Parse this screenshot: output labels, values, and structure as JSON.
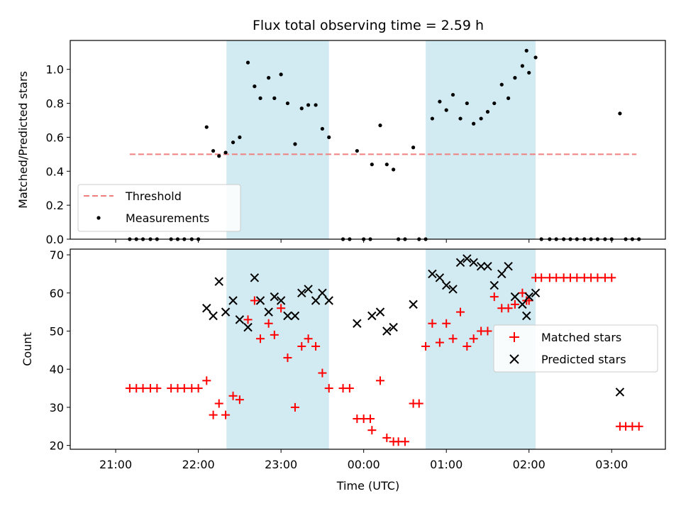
{
  "chart_data": {
    "type": "scatter",
    "title": "Flux total observing time = 2.59 h",
    "xlabel": "Time (UTC)",
    "x_ticks": [
      "21:00",
      "22:00",
      "23:00",
      "00:00",
      "01:00",
      "02:00",
      "03:00"
    ],
    "x_tick_hours": [
      21,
      22,
      23,
      24,
      25,
      26,
      27
    ],
    "xlim_hours": [
      20.45,
      27.65
    ],
    "shaded_intervals": [
      {
        "start": "22:20",
        "end": "23:35",
        "start_h": 22.34,
        "end_h": 23.58
      },
      {
        "start": "00:45",
        "end": "02:05",
        "start_h": 24.75,
        "end_h": 26.08
      }
    ],
    "shade_color": "#add8e6",
    "panels": [
      {
        "name": "ratio",
        "ylabel": "Matched/Predicted stars",
        "ylim": [
          0.0,
          1.17
        ],
        "y_ticks": [
          "0.0",
          "0.2",
          "0.4",
          "0.6",
          "0.8",
          "1.0"
        ],
        "y_tick_values": [
          0.0,
          0.2,
          0.4,
          0.6,
          0.8,
          1.0
        ],
        "legend_position": "lower-left",
        "threshold": {
          "name": "Threshold",
          "value": 0.5,
          "x_start_h": 21.17,
          "x_end_h": 27.3,
          "color": "#f08080",
          "style": "dashed"
        },
        "series": [
          {
            "name": "Measurements",
            "marker": "dot",
            "color": "#000000",
            "points": [
              [
                21.17,
                0
              ],
              [
                21.25,
                0
              ],
              [
                21.33,
                0
              ],
              [
                21.42,
                0
              ],
              [
                21.5,
                0
              ],
              [
                21.67,
                0
              ],
              [
                21.75,
                0
              ],
              [
                21.83,
                0
              ],
              [
                21.92,
                0
              ],
              [
                22.0,
                0
              ],
              [
                22.1,
                0.66
              ],
              [
                22.18,
                0.52
              ],
              [
                22.25,
                0.49
              ],
              [
                22.33,
                0.51
              ],
              [
                22.42,
                0.57
              ],
              [
                22.5,
                0.6
              ],
              [
                22.6,
                1.04
              ],
              [
                22.68,
                0.9
              ],
              [
                22.75,
                0.83
              ],
              [
                22.85,
                0.95
              ],
              [
                22.92,
                0.83
              ],
              [
                23.0,
                0.97
              ],
              [
                23.08,
                0.8
              ],
              [
                23.17,
                0.56
              ],
              [
                23.25,
                0.77
              ],
              [
                23.33,
                0.79
              ],
              [
                23.42,
                0.79
              ],
              [
                23.5,
                0.65
              ],
              [
                23.58,
                0.6
              ],
              [
                23.75,
                0
              ],
              [
                23.83,
                0
              ],
              [
                23.92,
                0.52
              ],
              [
                24.0,
                0
              ],
              [
                24.08,
                0
              ],
              [
                24.1,
                0.44
              ],
              [
                24.2,
                0.67
              ],
              [
                24.28,
                0.44
              ],
              [
                24.36,
                0.41
              ],
              [
                24.42,
                0
              ],
              [
                24.5,
                0
              ],
              [
                24.6,
                0.54
              ],
              [
                24.67,
                0
              ],
              [
                24.75,
                0
              ],
              [
                24.83,
                0.71
              ],
              [
                24.92,
                0.81
              ],
              [
                25.0,
                0.76
              ],
              [
                25.08,
                0.85
              ],
              [
                25.17,
                0.71
              ],
              [
                25.25,
                0.8
              ],
              [
                25.33,
                0.68
              ],
              [
                25.42,
                0.71
              ],
              [
                25.5,
                0.75
              ],
              [
                25.58,
                0.8
              ],
              [
                25.67,
                0.91
              ],
              [
                25.75,
                0.83
              ],
              [
                25.83,
                0.95
              ],
              [
                25.92,
                1.02
              ],
              [
                25.97,
                1.11
              ],
              [
                26.0,
                0.98
              ],
              [
                26.08,
                1.07
              ],
              [
                26.15,
                0
              ],
              [
                26.25,
                0
              ],
              [
                26.33,
                0
              ],
              [
                26.42,
                0
              ],
              [
                26.5,
                0
              ],
              [
                26.58,
                0
              ],
              [
                26.67,
                0
              ],
              [
                26.75,
                0
              ],
              [
                26.83,
                0
              ],
              [
                26.92,
                0
              ],
              [
                27.0,
                0
              ],
              [
                27.1,
                0.74
              ],
              [
                27.17,
                0
              ],
              [
                27.25,
                0
              ],
              [
                27.33,
                0
              ]
            ]
          }
        ]
      },
      {
        "name": "counts",
        "ylabel": "Count",
        "ylim": [
          19,
          71.5
        ],
        "y_ticks": [
          "20",
          "30",
          "40",
          "50",
          "60",
          "70"
        ],
        "y_tick_values": [
          20,
          30,
          40,
          50,
          60,
          70
        ],
        "legend_position": "center-right",
        "series": [
          {
            "name": "Matched stars",
            "marker": "plus",
            "color": "#ff0000",
            "points": [
              [
                21.17,
                35
              ],
              [
                21.25,
                35
              ],
              [
                21.33,
                35
              ],
              [
                21.42,
                35
              ],
              [
                21.5,
                35
              ],
              [
                21.67,
                35
              ],
              [
                21.75,
                35
              ],
              [
                21.83,
                35
              ],
              [
                21.92,
                35
              ],
              [
                22.0,
                35
              ],
              [
                22.1,
                37
              ],
              [
                22.18,
                28
              ],
              [
                22.25,
                31
              ],
              [
                22.33,
                28
              ],
              [
                22.42,
                33
              ],
              [
                22.5,
                32
              ],
              [
                22.6,
                53
              ],
              [
                22.68,
                58
              ],
              [
                22.75,
                48
              ],
              [
                22.85,
                52
              ],
              [
                22.92,
                49
              ],
              [
                23.0,
                56
              ],
              [
                23.08,
                43
              ],
              [
                23.17,
                30
              ],
              [
                23.25,
                46
              ],
              [
                23.33,
                48
              ],
              [
                23.42,
                46
              ],
              [
                23.5,
                39
              ],
              [
                23.58,
                35
              ],
              [
                23.75,
                35
              ],
              [
                23.83,
                35
              ],
              [
                23.92,
                27
              ],
              [
                24.0,
                27
              ],
              [
                24.08,
                27
              ],
              [
                24.1,
                24
              ],
              [
                24.2,
                37
              ],
              [
                24.28,
                22
              ],
              [
                24.36,
                21
              ],
              [
                24.42,
                21
              ],
              [
                24.5,
                21
              ],
              [
                24.6,
                31
              ],
              [
                24.67,
                31
              ],
              [
                24.75,
                46
              ],
              [
                24.83,
                52
              ],
              [
                24.92,
                47
              ],
              [
                25.0,
                52
              ],
              [
                25.08,
                48
              ],
              [
                25.17,
                55
              ],
              [
                25.25,
                46
              ],
              [
                25.33,
                48
              ],
              [
                25.42,
                50
              ],
              [
                25.5,
                50
              ],
              [
                25.58,
                59
              ],
              [
                25.67,
                56
              ],
              [
                25.75,
                56
              ],
              [
                25.83,
                57
              ],
              [
                25.92,
                60
              ],
              [
                25.97,
                58
              ],
              [
                26.0,
                58
              ],
              [
                26.08,
                64
              ],
              [
                26.15,
                64
              ],
              [
                26.25,
                64
              ],
              [
                26.33,
                64
              ],
              [
                26.42,
                64
              ],
              [
                26.5,
                64
              ],
              [
                26.58,
                64
              ],
              [
                26.67,
                64
              ],
              [
                26.75,
                64
              ],
              [
                26.83,
                64
              ],
              [
                26.92,
                64
              ],
              [
                27.0,
                64
              ],
              [
                27.1,
                25
              ],
              [
                27.17,
                25
              ],
              [
                27.25,
                25
              ],
              [
                27.33,
                25
              ]
            ]
          },
          {
            "name": "Predicted stars",
            "marker": "x",
            "color": "#000000",
            "points": [
              [
                22.1,
                56
              ],
              [
                22.18,
                54
              ],
              [
                22.25,
                63
              ],
              [
                22.33,
                55
              ],
              [
                22.42,
                58
              ],
              [
                22.5,
                53
              ],
              [
                22.6,
                51
              ],
              [
                22.68,
                64
              ],
              [
                22.75,
                58
              ],
              [
                22.85,
                55
              ],
              [
                22.92,
                59
              ],
              [
                23.0,
                58
              ],
              [
                23.08,
                54
              ],
              [
                23.17,
                54
              ],
              [
                23.25,
                60
              ],
              [
                23.33,
                61
              ],
              [
                23.42,
                58
              ],
              [
                23.5,
                60
              ],
              [
                23.58,
                58
              ],
              [
                23.92,
                52
              ],
              [
                24.1,
                54
              ],
              [
                24.2,
                55
              ],
              [
                24.28,
                50
              ],
              [
                24.36,
                51
              ],
              [
                24.6,
                57
              ],
              [
                24.83,
                65
              ],
              [
                24.92,
                64
              ],
              [
                25.0,
                62
              ],
              [
                25.08,
                61
              ],
              [
                25.17,
                68
              ],
              [
                25.25,
                69
              ],
              [
                25.33,
                68
              ],
              [
                25.42,
                67
              ],
              [
                25.5,
                67
              ],
              [
                25.58,
                62
              ],
              [
                25.67,
                65
              ],
              [
                25.75,
                67
              ],
              [
                25.83,
                59
              ],
              [
                25.92,
                57
              ],
              [
                25.97,
                54
              ],
              [
                26.0,
                59
              ],
              [
                26.08,
                60
              ],
              [
                27.1,
                34
              ]
            ]
          }
        ]
      }
    ]
  }
}
